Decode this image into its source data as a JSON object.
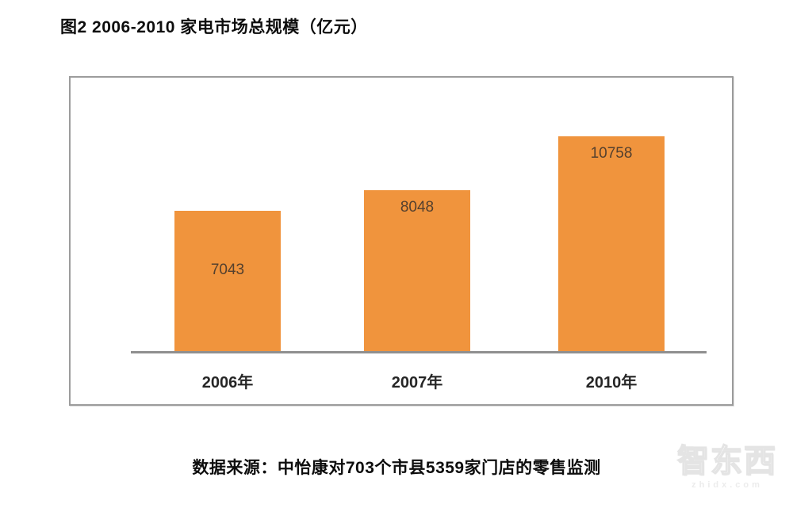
{
  "page": {
    "title": "图2 2006-2010 家电市场总规模（亿元）",
    "source_note": "数据来源：中怡康对703个市县5359家门店的零售监测",
    "watermark": {
      "brand": "智东西",
      "domain": "zhidx.com"
    }
  },
  "chart_data": {
    "type": "bar",
    "title": "图2 2006-2010 家电市场总规模（亿元）",
    "categories": [
      "2006年",
      "2007年",
      "2010年"
    ],
    "values": [
      7043,
      8048,
      10758
    ],
    "unit": "亿元",
    "xlabel": "",
    "ylabel": "",
    "ylim": [
      0,
      11500
    ],
    "grid": false,
    "legend": "none",
    "bar_color": "#f0943d",
    "value_label_color": "#54402e",
    "value_label_positions": [
      "center",
      "top",
      "top"
    ],
    "axis_line_color": "#8f8f8f"
  }
}
